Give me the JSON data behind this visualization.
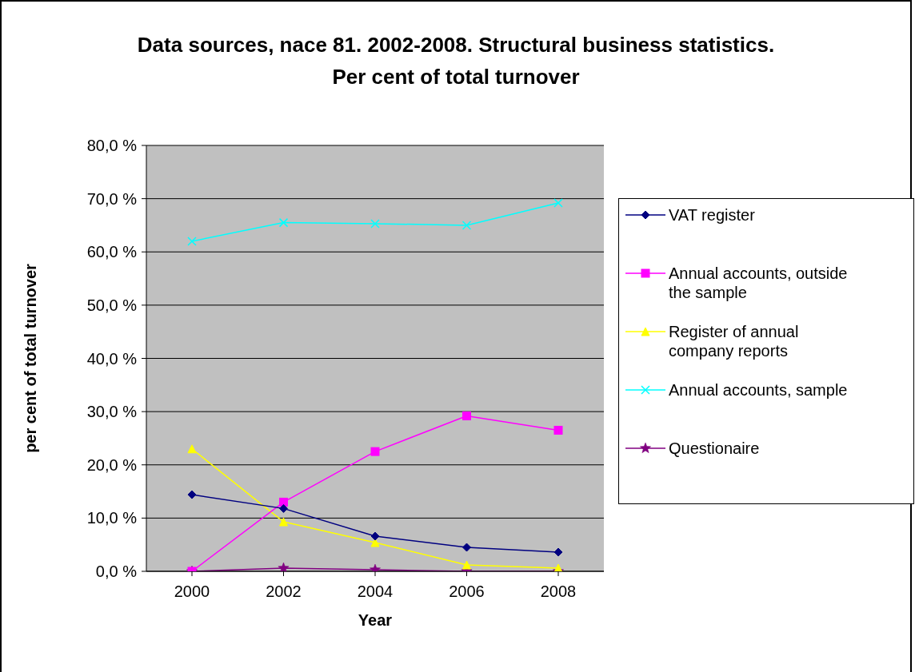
{
  "chart_data": {
    "type": "line",
    "title": "Data sources, nace 81. 2002-2008. Structural business statistics. Per cent of total turnover",
    "xlabel": "Year",
    "ylabel": "per cent of total turnover",
    "categories": [
      "2000",
      "2002",
      "2004",
      "2006",
      "2008"
    ],
    "series": [
      {
        "name": "VAT register",
        "color": "#000080",
        "marker": "diamond",
        "values": [
          14.4,
          11.8,
          6.6,
          4.5,
          3.6
        ]
      },
      {
        "name": "Annual accounts, outside the sample",
        "color": "#ff00ff",
        "marker": "square",
        "values": [
          0,
          13.0,
          22.5,
          29.2,
          26.5
        ]
      },
      {
        "name": "Register of annual company reports",
        "color": "#ffff00",
        "marker": "triangle",
        "values": [
          23.0,
          9.3,
          5.4,
          1.2,
          0.6
        ]
      },
      {
        "name": "Annual accounts, sample",
        "color": "#00ffff",
        "marker": "cross",
        "values": [
          62.0,
          65.5,
          65.3,
          65.0,
          69.2
        ]
      },
      {
        "name": "Questionaire",
        "color": "#800080",
        "marker": "star",
        "values": [
          0,
          0.6,
          0.3,
          0,
          0
        ]
      }
    ],
    "ylim": [
      0,
      80
    ],
    "yticks": [
      {
        "value": 0,
        "label": "0,0 %"
      },
      {
        "value": 10,
        "label": "10,0 %"
      },
      {
        "value": 20,
        "label": "20,0 %"
      },
      {
        "value": 30,
        "label": "30,0 %"
      },
      {
        "value": 40,
        "label": "40,0 %"
      },
      {
        "value": 50,
        "label": "50,0 %"
      },
      {
        "value": 60,
        "label": "60,0 %"
      },
      {
        "value": 70,
        "label": "70,0 %"
      },
      {
        "value": 80,
        "label": "80,0 %"
      }
    ],
    "grid": "y",
    "legend": "right",
    "line_style": "solid"
  }
}
